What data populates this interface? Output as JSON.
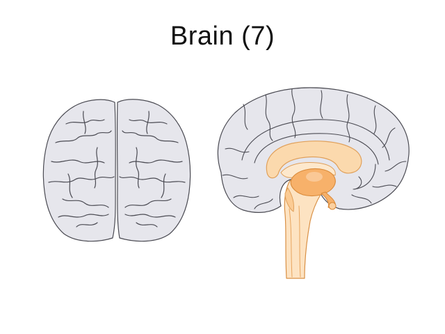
{
  "slide": {
    "title": "Brain (7)"
  },
  "illustration": {
    "top_view_icon": "brain-top-view-icon",
    "side_view_icon": "brain-sagittal-section-icon",
    "colors": {
      "cortex_fill": "#e6e6ec",
      "cortex_stroke": "#4a4a52",
      "corpus_callosum": "#fbd9ad",
      "thalamus": "#f7b16a",
      "brainstem": "#fde3c2",
      "brainstem_stroke": "#d99045"
    }
  }
}
